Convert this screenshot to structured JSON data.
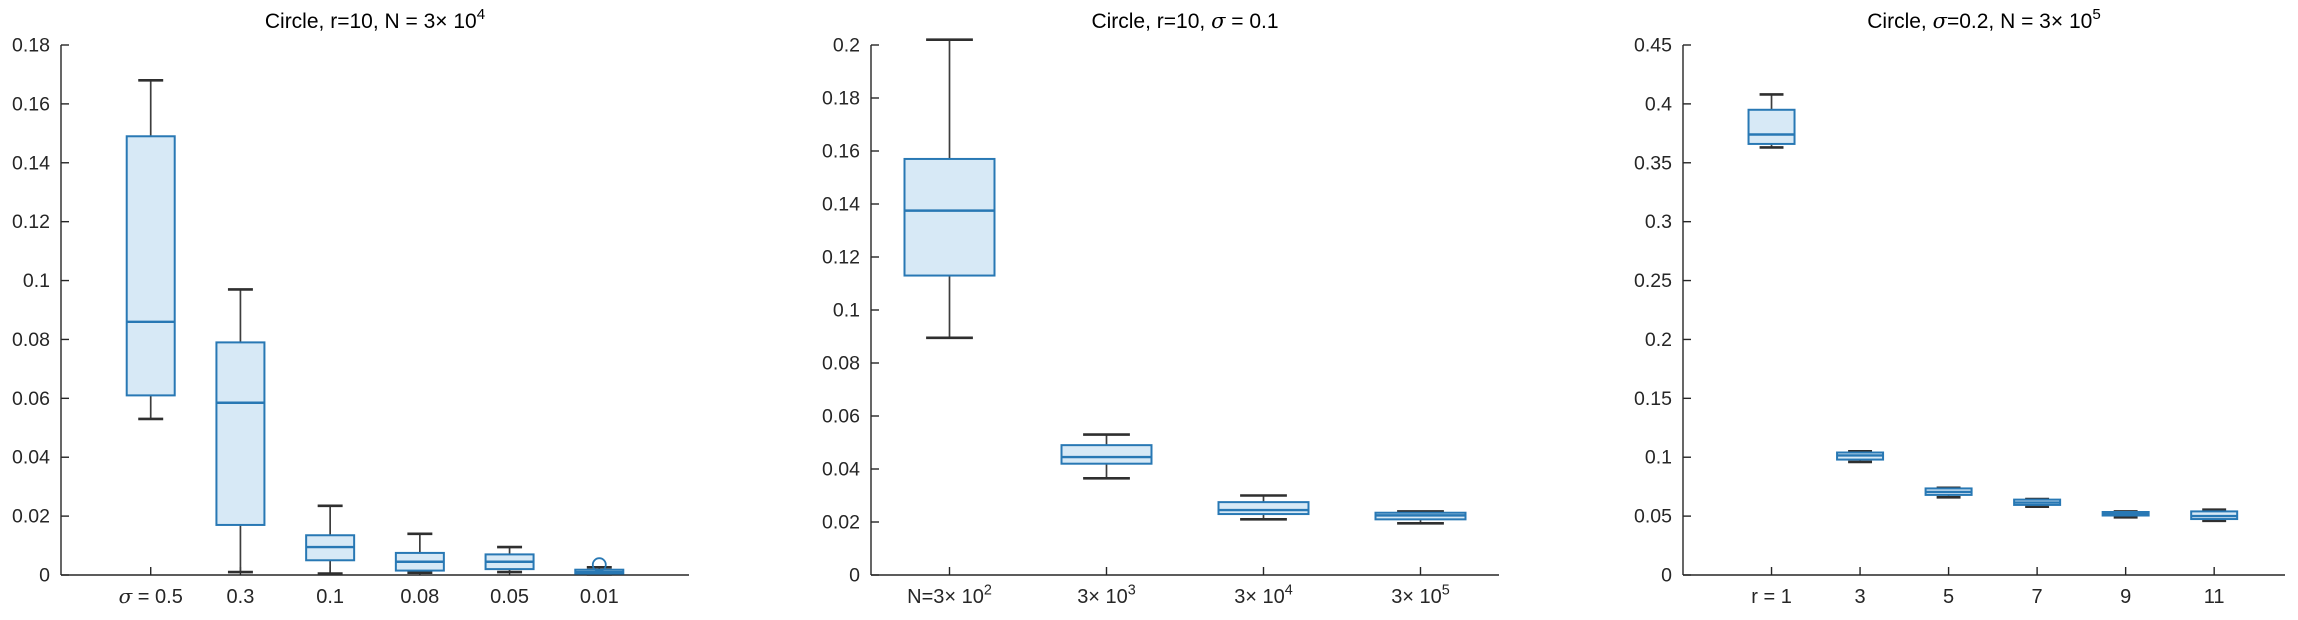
{
  "figure": {
    "background": "#ffffff",
    "description_labels": {
      "plot1_title": "Circle, r=10, N = 3× 10^4",
      "plot2_title": "Circle, r=10, σ = 0.1",
      "plot3_title": "Circle, σ=0.2, N = 3× 10^5"
    }
  },
  "colors": {
    "box_fill": "#d7e9f6",
    "box_edge": "#2878b4",
    "median_line": "#2878b4",
    "whisker": "#3d3d3d",
    "whisker_cap": "#2f2f2f",
    "outlier_edge": "#2878b4",
    "axis_line": "#262626",
    "tick_label": "#262626",
    "title_text": "#000000"
  },
  "chart_data": [
    {
      "type": "boxplot",
      "title_plain": "Circle, r=10, N = 3× 10^4",
      "title_segments": [
        {
          "t": "Circle, r=10, N = 3× 10"
        },
        {
          "t": "4",
          "sup": true
        }
      ],
      "ylim": [
        0,
        0.18
      ],
      "grid": false,
      "yticks": [
        {
          "v": 0,
          "label": "0"
        },
        {
          "v": 0.02,
          "label": "0.02"
        },
        {
          "v": 0.04,
          "label": "0.04"
        },
        {
          "v": 0.06,
          "label": "0.06"
        },
        {
          "v": 0.08,
          "label": "0.08"
        },
        {
          "v": 0.1,
          "label": "0.1"
        },
        {
          "v": 0.12,
          "label": "0.12"
        },
        {
          "v": 0.14,
          "label": "0.14"
        },
        {
          "v": 0.16,
          "label": "0.16"
        },
        {
          "v": 0.18,
          "label": "0.18"
        }
      ],
      "categories_plain": [
        "σ = 0.5",
        "0.3",
        "0.1",
        "0.08",
        "0.05",
        "0.01"
      ],
      "categories": [
        [
          {
            "t": "σ",
            "italic": true
          },
          {
            "t": " = 0.5"
          }
        ],
        [
          {
            "t": "0.3"
          }
        ],
        [
          {
            "t": "0.1"
          }
        ],
        [
          {
            "t": "0.08"
          }
        ],
        [
          {
            "t": "0.05"
          }
        ],
        [
          {
            "t": "0.01"
          }
        ]
      ],
      "boxes": [
        {
          "whisker_lo": 0.053,
          "q1": 0.061,
          "median": 0.086,
          "q3": 0.149,
          "whisker_hi": 0.168,
          "outliers": []
        },
        {
          "whisker_lo": 0.001,
          "q1": 0.017,
          "median": 0.0585,
          "q3": 0.079,
          "whisker_hi": 0.097,
          "outliers": []
        },
        {
          "whisker_lo": 0.0005,
          "q1": 0.005,
          "median": 0.0095,
          "q3": 0.0135,
          "whisker_hi": 0.0235,
          "outliers": []
        },
        {
          "whisker_lo": 0.0008,
          "q1": 0.0015,
          "median": 0.0045,
          "q3": 0.0075,
          "whisker_hi": 0.014,
          "outliers": []
        },
        {
          "whisker_lo": 0.001,
          "q1": 0.002,
          "median": 0.0045,
          "q3": 0.007,
          "whisker_hi": 0.0095,
          "outliers": []
        },
        {
          "whisker_lo": 0.0002,
          "q1": 0.0005,
          "median": 0.001,
          "q3": 0.0018,
          "whisker_hi": 0.0026,
          "outliers": [
            0.0035
          ]
        }
      ]
    },
    {
      "type": "boxplot",
      "title_plain": "Circle, r=10, σ = 0.1",
      "title_segments": [
        {
          "t": "Circle, r=10, "
        },
        {
          "t": "σ",
          "italic": true
        },
        {
          "t": " = 0.1"
        }
      ],
      "ylim": [
        0,
        0.2
      ],
      "grid": false,
      "yticks": [
        {
          "v": 0,
          "label": "0"
        },
        {
          "v": 0.02,
          "label": "0.02"
        },
        {
          "v": 0.04,
          "label": "0.04"
        },
        {
          "v": 0.06,
          "label": "0.06"
        },
        {
          "v": 0.08,
          "label": "0.08"
        },
        {
          "v": 0.1,
          "label": "0.1"
        },
        {
          "v": 0.12,
          "label": "0.12"
        },
        {
          "v": 0.14,
          "label": "0.14"
        },
        {
          "v": 0.16,
          "label": "0.16"
        },
        {
          "v": 0.18,
          "label": "0.18"
        },
        {
          "v": 0.2,
          "label": "0.2"
        }
      ],
      "categories_plain": [
        "N=3× 10^2",
        "3× 10^3",
        "3× 10^4",
        "3× 10^5"
      ],
      "categories": [
        [
          {
            "t": "N=3× 10"
          },
          {
            "t": "2",
            "sup": true
          }
        ],
        [
          {
            "t": "3× 10"
          },
          {
            "t": "3",
            "sup": true
          }
        ],
        [
          {
            "t": "3× 10"
          },
          {
            "t": "4",
            "sup": true
          }
        ],
        [
          {
            "t": "3× 10"
          },
          {
            "t": "5",
            "sup": true
          }
        ]
      ],
      "boxes": [
        {
          "whisker_lo": 0.0895,
          "q1": 0.113,
          "median": 0.1375,
          "q3": 0.157,
          "whisker_hi": 0.202,
          "outliers": []
        },
        {
          "whisker_lo": 0.0365,
          "q1": 0.042,
          "median": 0.0445,
          "q3": 0.049,
          "whisker_hi": 0.053,
          "outliers": []
        },
        {
          "whisker_lo": 0.021,
          "q1": 0.023,
          "median": 0.0245,
          "q3": 0.0275,
          "whisker_hi": 0.03,
          "outliers": []
        },
        {
          "whisker_lo": 0.0195,
          "q1": 0.021,
          "median": 0.0225,
          "q3": 0.0235,
          "whisker_hi": 0.024,
          "outliers": []
        }
      ]
    },
    {
      "type": "boxplot",
      "title_plain": "Circle, σ=0.2, N = 3× 10^5",
      "title_segments": [
        {
          "t": "Circle, "
        },
        {
          "t": "σ",
          "italic": true
        },
        {
          "t": "=0.2, N = 3× 10"
        },
        {
          "t": "5",
          "sup": true
        }
      ],
      "ylim": [
        0,
        0.45
      ],
      "grid": false,
      "yticks": [
        {
          "v": 0,
          "label": "0"
        },
        {
          "v": 0.05,
          "label": "0.05"
        },
        {
          "v": 0.1,
          "label": "0.1"
        },
        {
          "v": 0.15,
          "label": "0.15"
        },
        {
          "v": 0.2,
          "label": "0.2"
        },
        {
          "v": 0.25,
          "label": "0.25"
        },
        {
          "v": 0.3,
          "label": "0.3"
        },
        {
          "v": 0.35,
          "label": "0.35"
        },
        {
          "v": 0.4,
          "label": "0.4"
        },
        {
          "v": 0.45,
          "label": "0.45"
        }
      ],
      "categories_plain": [
        "r = 1",
        "3",
        "5",
        "7",
        "9",
        "11"
      ],
      "categories": [
        [
          {
            "t": "r = 1"
          }
        ],
        [
          {
            "t": "3"
          }
        ],
        [
          {
            "t": "5"
          }
        ],
        [
          {
            "t": "7"
          }
        ],
        [
          {
            "t": "9"
          }
        ],
        [
          {
            "t": "11"
          }
        ]
      ],
      "boxes": [
        {
          "whisker_lo": 0.363,
          "q1": 0.366,
          "median": 0.374,
          "q3": 0.395,
          "whisker_hi": 0.408,
          "outliers": []
        },
        {
          "whisker_lo": 0.096,
          "q1": 0.098,
          "median": 0.1015,
          "q3": 0.104,
          "whisker_hi": 0.105,
          "outliers": []
        },
        {
          "whisker_lo": 0.066,
          "q1": 0.068,
          "median": 0.0705,
          "q3": 0.0735,
          "whisker_hi": 0.074,
          "outliers": []
        },
        {
          "whisker_lo": 0.058,
          "q1": 0.0595,
          "median": 0.0615,
          "q3": 0.064,
          "whisker_hi": 0.0645,
          "outliers": []
        },
        {
          "whisker_lo": 0.049,
          "q1": 0.0505,
          "median": 0.052,
          "q3": 0.0535,
          "whisker_hi": 0.054,
          "outliers": []
        },
        {
          "whisker_lo": 0.046,
          "q1": 0.0475,
          "median": 0.05,
          "q3": 0.054,
          "whisker_hi": 0.0555,
          "outliers": []
        }
      ]
    }
  ]
}
